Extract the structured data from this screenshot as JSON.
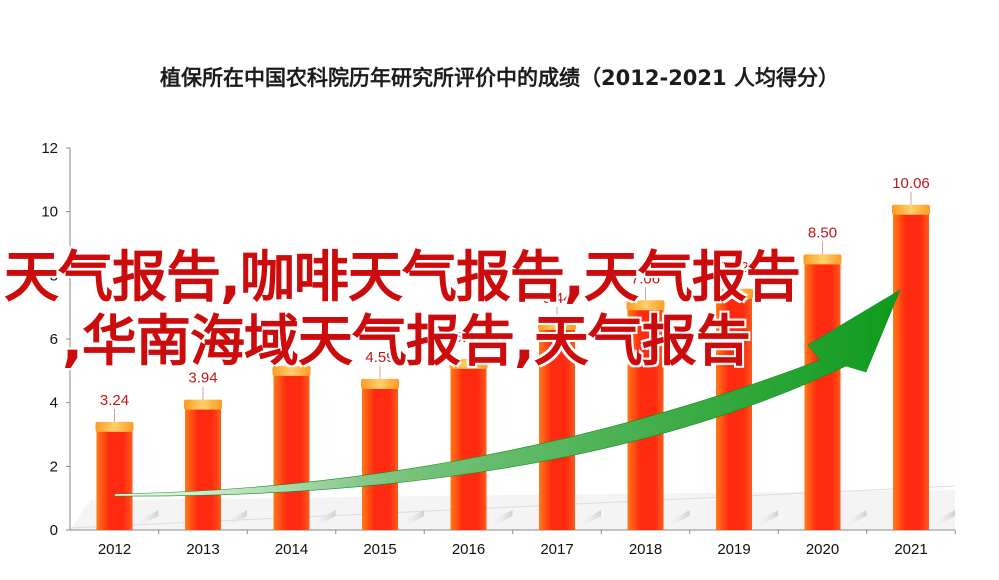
{
  "chart_data": {
    "type": "bar",
    "title": "植保所在中国农科院历年研究所评价中的成绩（2012-2021 人均得分）",
    "categories": [
      "2012",
      "2013",
      "2014",
      "2015",
      "2016",
      "2017",
      "2018",
      "2019",
      "2020",
      "2021"
    ],
    "values": [
      3.24,
      3.94,
      5.0,
      4.59,
      5.22,
      6.44,
      7.06,
      7.42,
      8.5,
      10.06
    ],
    "data_labels": [
      "3.24",
      "3.94",
      "",
      "4.59",
      "5.22",
      "6.44",
      "7.06",
      "7.42",
      "8.50",
      "10.06"
    ],
    "yticks": [
      "0",
      "2",
      "4",
      "6",
      "8",
      "10",
      "12"
    ],
    "ylim": [
      0,
      12
    ],
    "xlabel": "",
    "ylabel": "",
    "grid": false,
    "colors": {
      "bar_main": "#ff2a10",
      "bar_light": "#ffb23a",
      "data_label": "#c0171b",
      "trend_arrow": "#1fa22a"
    }
  },
  "overlay": {
    "line1": "天气报告,咖啡天气报告,天气报告",
    "line2": ",华南海域天气报告,天气报告"
  }
}
